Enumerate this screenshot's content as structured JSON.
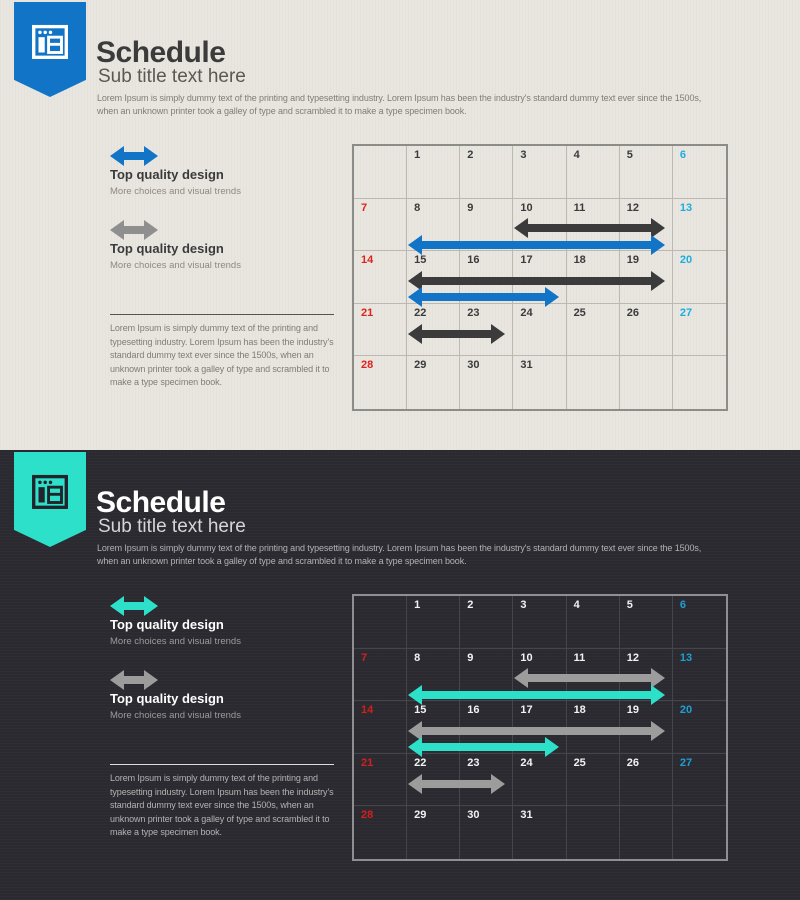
{
  "content": {
    "title": "Schedule",
    "subtitle": "Sub title text here",
    "intro": "Lorem Ipsum is simply dummy text of the printing and typesetting industry. Lorem Ipsum has been the industry's standard dummy text ever since the 1500s, when an unknown printer took a galley of type and scrambled it to make a type specimen book.",
    "legend": [
      {
        "title": "Top quality design",
        "caption": "More choices and visual trends",
        "arrow_style": "accent"
      },
      {
        "title": "Top quality design",
        "caption": "More choices and visual trends",
        "arrow_style": "gray"
      }
    ],
    "note": "Lorem Ipsum is simply dummy text of the printing and typesetting industry. Lorem Ipsum has been the industry's standard dummy text ever since the 1500s, when an unknown printer took a galley of type and scrambled it to make a type specimen book."
  },
  "calendar": {
    "weeks": [
      [
        "",
        "1",
        "2",
        "3",
        "4",
        "5",
        "6"
      ],
      [
        "7",
        "8",
        "9",
        "10",
        "11",
        "12",
        "13"
      ],
      [
        "14",
        "15",
        "16",
        "17",
        "18",
        "19",
        "20"
      ],
      [
        "21",
        "22",
        "23",
        "24",
        "25",
        "26",
        "27"
      ],
      [
        "28",
        "29",
        "30",
        "31",
        "",
        "",
        ""
      ]
    ],
    "red_days": [
      "7",
      "14",
      "21",
      "28"
    ],
    "cyan_days": [
      "6",
      "13",
      "20",
      "27"
    ],
    "arrows": [
      {
        "week": 1,
        "from_col": 3,
        "to_col": 6,
        "lane": 0,
        "style": "neutral",
        "span_days": "10-12"
      },
      {
        "week": 1,
        "from_col": 1,
        "to_col": 6,
        "lane": 1,
        "style": "accent",
        "span_days": "8-12"
      },
      {
        "week": 2,
        "from_col": 1,
        "to_col": 6,
        "lane": 0,
        "style": "neutral",
        "span_days": "15-19"
      },
      {
        "week": 2,
        "from_col": 1,
        "to_col": 4,
        "lane": 1,
        "style": "accent",
        "span_days": "15-17"
      },
      {
        "week": 3,
        "from_col": 1,
        "to_col": 3,
        "lane": 0,
        "style": "neutral",
        "span_days": "22-23"
      }
    ]
  },
  "themes": {
    "light": {
      "bg": "#e9e6e0",
      "badge": "#1274c6",
      "badge_icon": "#ffffff",
      "title": "#3b3b3b",
      "subtitle": "#5a5852",
      "body": "#807d74",
      "legend_caption": "#8d8a81",
      "accent": "#1274c6",
      "gray": "#8f8f8f",
      "neutral": "#3b3b3b",
      "cal_border": "#8c8c88",
      "grid_line": "#bcb9b2",
      "day": "#3b3b3b",
      "day_red": "#e0211c",
      "day_cyan": "#1badde",
      "divider": "#56544f"
    },
    "dark": {
      "bg": "#2a2a30",
      "badge": "#2ce0c9",
      "badge_icon": "#23232b",
      "title": "#ffffff",
      "subtitle": "#d6d6d6",
      "body": "#b3b3b3",
      "legend_caption": "#9c9c9c",
      "accent": "#2ce0c9",
      "gray": "#9c9c9c",
      "neutral": "#9c9c9c",
      "cal_border": "#8f8f92",
      "grid_line": "#45454c",
      "day": "#f2f2f2",
      "day_red": "#d41f1f",
      "day_cyan": "#1f9fd6",
      "divider": "#dddddd"
    }
  }
}
